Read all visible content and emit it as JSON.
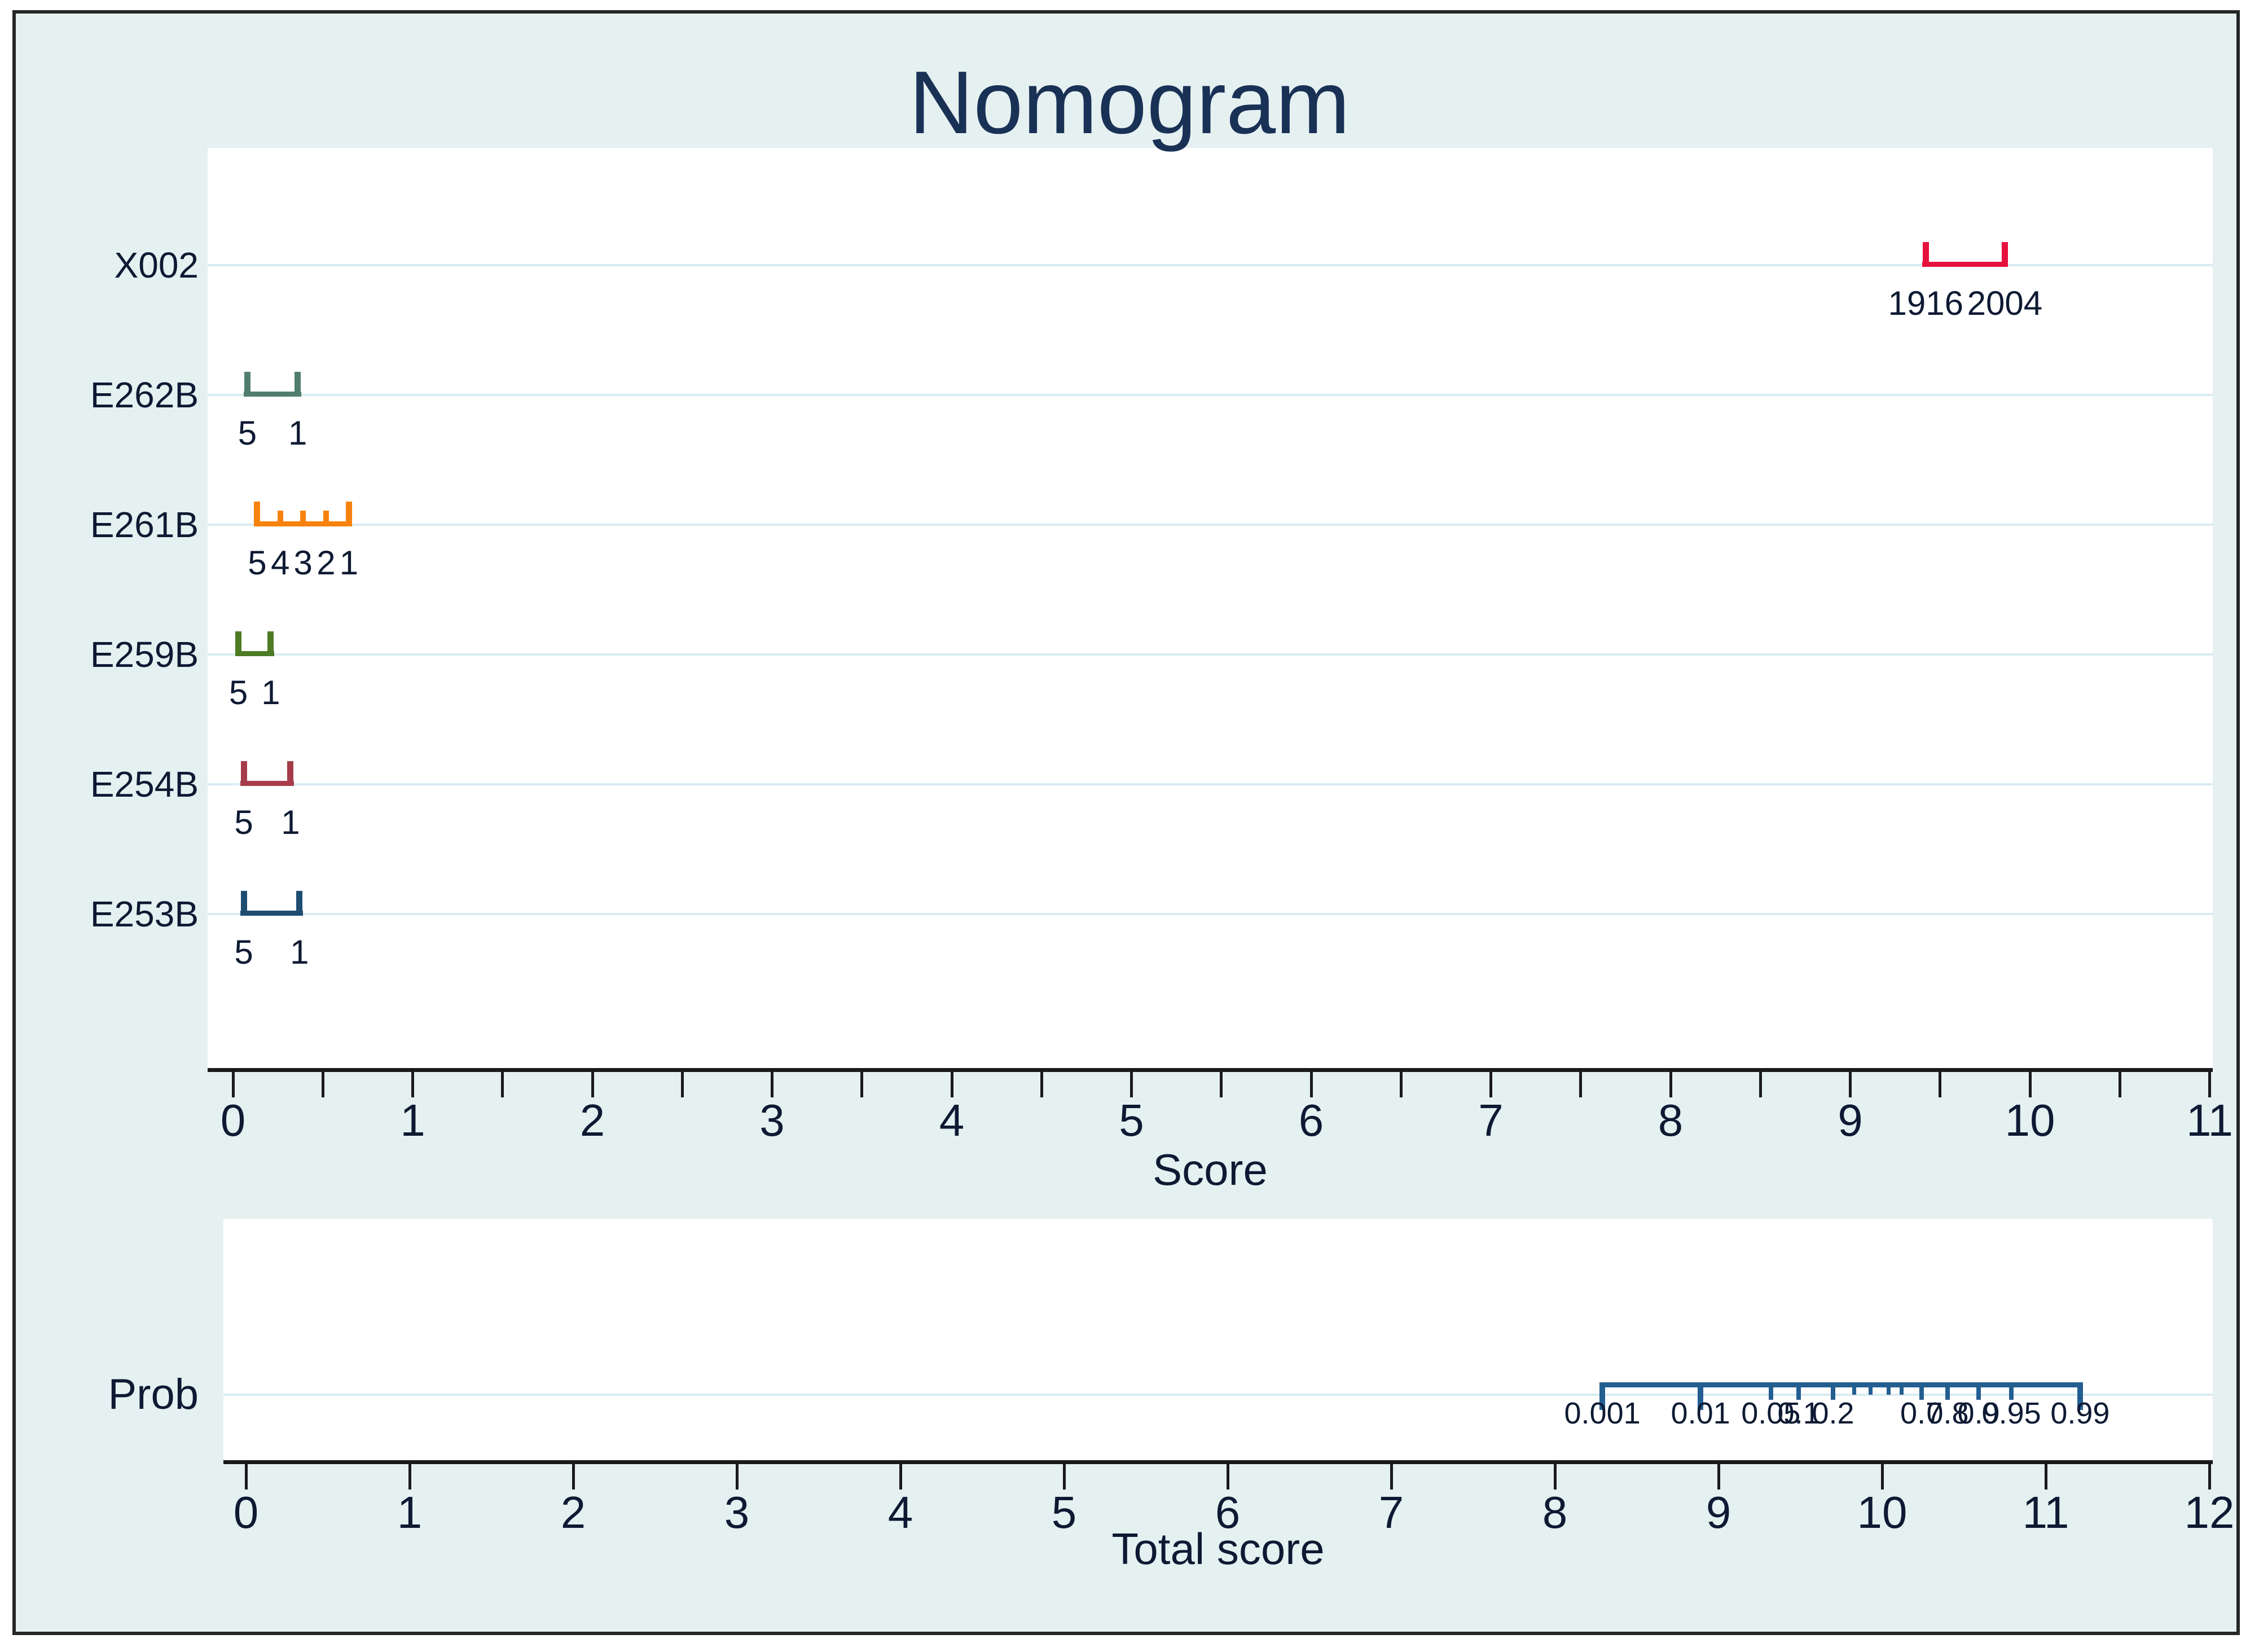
{
  "colors": {
    "figure_background": "#e5f0f1",
    "plot_background": "#ffffff",
    "gridline": "#d9ebf2",
    "axis": "#1a1a1a",
    "text": "#0e1a33",
    "title": "#1a3156"
  },
  "chart_data": [
    {
      "id": "score_panel",
      "type": "nomogram",
      "title": "Nomogram",
      "xlabel": "Score",
      "axis": {
        "min": 0,
        "max": 11,
        "major_tick_step": 1,
        "minor_tick_step": 0.5,
        "tick_labels": [
          "0",
          "1",
          "2",
          "3",
          "4",
          "5",
          "6",
          "7",
          "8",
          "9",
          "10",
          "11"
        ],
        "grid": true,
        "legend": "none"
      },
      "rows": [
        {
          "name": "X002",
          "color": "#e6103f",
          "points": [
            {
              "label": "1916",
              "score": 9.42
            },
            {
              "label": "2004",
              "score": 9.86
            }
          ]
        },
        {
          "name": "E262B",
          "color": "#507e6e",
          "points": [
            {
              "label": "5",
              "score": 0.08
            },
            {
              "label": "1",
              "score": 0.36
            }
          ]
        },
        {
          "name": "E261B",
          "color": "#f8820e",
          "points": [
            {
              "label": "5",
              "score": 0.135
            },
            {
              "label": "4",
              "score": 0.263
            },
            {
              "label": "3",
              "score": 0.39
            },
            {
              "label": "2",
              "score": 0.518
            },
            {
              "label": "1",
              "score": 0.645
            }
          ]
        },
        {
          "name": "E259B",
          "color": "#4d7b24",
          "points": [
            {
              "label": "5",
              "score": 0.03
            },
            {
              "label": "1",
              "score": 0.21
            }
          ]
        },
        {
          "name": "E254B",
          "color": "#a63c49",
          "points": [
            {
              "label": "5",
              "score": 0.06
            },
            {
              "label": "1",
              "score": 0.32
            }
          ]
        },
        {
          "name": "E253B",
          "color": "#1e4d72",
          "points": [
            {
              "label": "5",
              "score": 0.06
            },
            {
              "label": "1",
              "score": 0.37
            }
          ]
        }
      ]
    },
    {
      "id": "prob_panel",
      "type": "nomogram",
      "xlabel": "Total score",
      "row_label": "Prob",
      "axis": {
        "min": 0,
        "max": 12,
        "major_tick_step": 1,
        "tick_labels": [
          "0",
          "1",
          "2",
          "3",
          "4",
          "5",
          "6",
          "7",
          "8",
          "9",
          "10",
          "11",
          "12"
        ],
        "grid": true,
        "legend": "none"
      },
      "ruler": {
        "color": "#235e91",
        "ticks": [
          {
            "p": "0.001",
            "score": 8.29,
            "label_shown": true,
            "size": "end"
          },
          {
            "p": "0.01",
            "score": 8.89,
            "label_shown": true,
            "size": "end"
          },
          {
            "p": "0.05",
            "score": 9.32,
            "label_shown": true,
            "size": "major"
          },
          {
            "p": "0.1",
            "score": 9.49,
            "label_shown": true,
            "size": "major"
          },
          {
            "p": "0.2",
            "score": 9.7,
            "label_shown": true,
            "size": "major"
          },
          {
            "p": "0.3",
            "score": 9.83,
            "label_shown": false,
            "size": "minor"
          },
          {
            "p": "0.4",
            "score": 9.93,
            "label_shown": false,
            "size": "minor"
          },
          {
            "p": "0.5",
            "score": 10.04,
            "label_shown": false,
            "size": "minor"
          },
          {
            "p": "0.6",
            "score": 10.12,
            "label_shown": false,
            "size": "minor"
          },
          {
            "p": "0.7",
            "score": 10.24,
            "label_shown": true,
            "size": "major"
          },
          {
            "p": "0.8",
            "score": 10.4,
            "label_shown": true,
            "size": "major"
          },
          {
            "p": "0.9",
            "score": 10.59,
            "label_shown": true,
            "size": "major"
          },
          {
            "p": "0.95",
            "score": 10.79,
            "label_shown": true,
            "size": "major"
          },
          {
            "p": "0.99",
            "score": 11.21,
            "label_shown": true,
            "size": "end"
          }
        ]
      }
    }
  ]
}
